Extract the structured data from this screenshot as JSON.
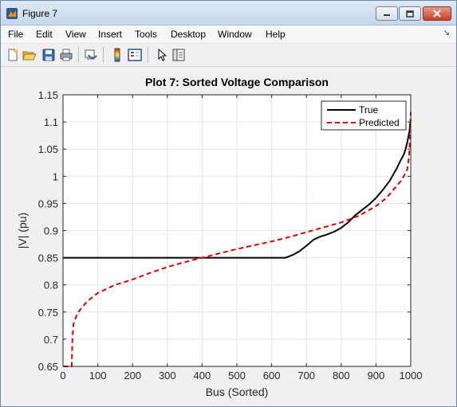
{
  "window": {
    "title": "Figure 7",
    "app_icon": "matlab-icon",
    "controls": [
      "minimize-icon",
      "maximize-icon",
      "close-icon"
    ]
  },
  "menubar": {
    "items": [
      "File",
      "Edit",
      "View",
      "Insert",
      "Tools",
      "Desktop",
      "Window",
      "Help"
    ],
    "overflow_icon": "chevron-icon"
  },
  "toolbar": {
    "buttons": [
      "new-figure-icon",
      "open-file-icon",
      "save-icon",
      "print-icon",
      "link-icon",
      "colorbar-icon",
      "legend-icon",
      "pointer-icon",
      "property-editor-icon"
    ]
  },
  "colors": {
    "true_line": "#000000",
    "predicted_line": "#e00000",
    "figure_bg": "#f0f0f0",
    "grid": "#e3e3e3"
  },
  "chart_data": {
    "type": "line",
    "title": "Plot 7: Sorted Voltage Comparison",
    "xlabel": "Bus (Sorted)",
    "ylabel": "|V| (pu)",
    "xlim": [
      0,
      1000
    ],
    "ylim": [
      0.65,
      1.15
    ],
    "xticks": [
      0,
      100,
      200,
      300,
      400,
      500,
      600,
      700,
      800,
      900,
      1000
    ],
    "yticks": [
      0.65,
      0.7,
      0.75,
      0.8,
      0.85,
      0.9,
      0.95,
      1,
      1.05,
      1.1,
      1.15
    ],
    "xtick_labels": [
      "0",
      "100",
      "200",
      "300",
      "400",
      "500",
      "600",
      "700",
      "800",
      "900",
      "1000"
    ],
    "ytick_labels": [
      "0.65",
      "0.7",
      "0.75",
      "0.8",
      "0.85",
      "0.9",
      "0.95",
      "1",
      "1.05",
      "1.1",
      "1.15"
    ],
    "grid": true,
    "legend_position": "top-right",
    "series": [
      {
        "name": "True",
        "style": "solid",
        "x": [
          1,
          100,
          200,
          300,
          400,
          500,
          600,
          640,
          660,
          680,
          700,
          720,
          740,
          760,
          780,
          800,
          820,
          840,
          860,
          880,
          900,
          920,
          940,
          960,
          970,
          980,
          985,
          990,
          993,
          996,
          998,
          1000
        ],
        "y": [
          0.85,
          0.85,
          0.85,
          0.85,
          0.85,
          0.85,
          0.85,
          0.85,
          0.855,
          0.862,
          0.872,
          0.883,
          0.889,
          0.893,
          0.898,
          0.905,
          0.915,
          0.928,
          0.938,
          0.948,
          0.96,
          0.975,
          0.992,
          1.015,
          1.028,
          1.04,
          1.05,
          1.062,
          1.072,
          1.082,
          1.093,
          1.105
        ]
      },
      {
        "name": "Predicted",
        "style": "dashed",
        "x": [
          1,
          25,
          27,
          30,
          40,
          50,
          70,
          100,
          150,
          200,
          250,
          300,
          350,
          400,
          450,
          500,
          550,
          600,
          650,
          700,
          750,
          800,
          850,
          900,
          930,
          950,
          970,
          980,
          990,
          995,
          998,
          1000
        ],
        "y": [
          0.65,
          0.65,
          0.7,
          0.728,
          0.745,
          0.755,
          0.77,
          0.785,
          0.8,
          0.81,
          0.822,
          0.833,
          0.842,
          0.85,
          0.858,
          0.866,
          0.873,
          0.88,
          0.888,
          0.897,
          0.906,
          0.915,
          0.927,
          0.945,
          0.96,
          0.975,
          0.99,
          1.0,
          1.012,
          1.035,
          1.07,
          1.118
        ]
      }
    ]
  }
}
